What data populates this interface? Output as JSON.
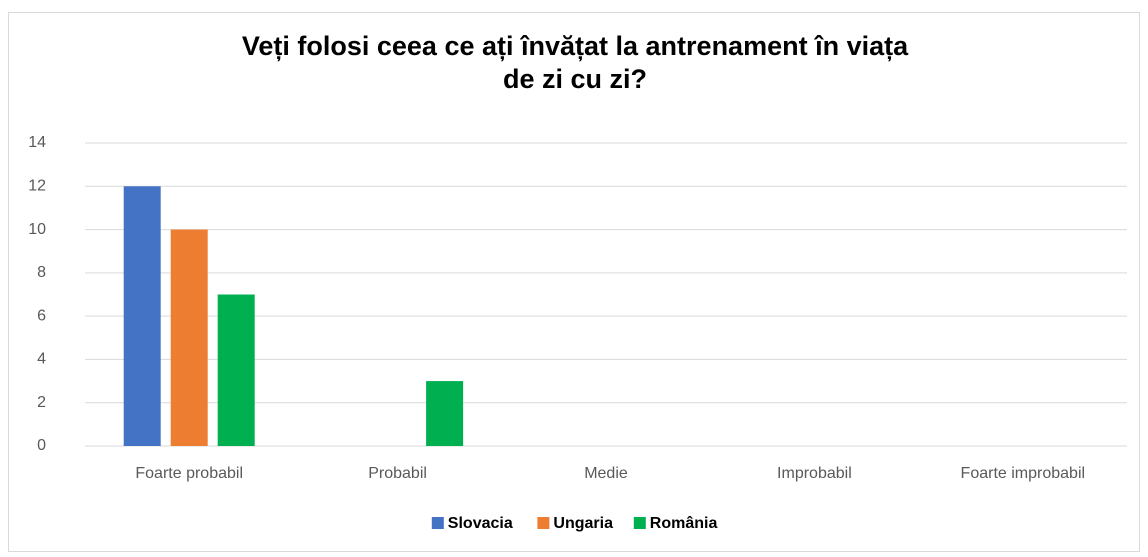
{
  "chart_data": {
    "type": "bar",
    "title": "Veți folosi ceea ce ați învățat la antrenament în viața de zi cu zi?",
    "categories": [
      "Foarte probabil",
      "Probabil",
      "Medie",
      "Improbabil",
      "Foarte improbabil"
    ],
    "series": [
      {
        "name": "Slovacia",
        "color": "#4472c4",
        "values": [
          12,
          0,
          0,
          0,
          0
        ]
      },
      {
        "name": "Ungaria",
        "color": "#ed7d31",
        "values": [
          10,
          0,
          0,
          0,
          0
        ]
      },
      {
        "name": "România",
        "color": "#00b050",
        "values": [
          7,
          3,
          0,
          0,
          0
        ]
      }
    ],
    "ylim": [
      0,
      14
    ],
    "yticks": [
      0,
      2,
      4,
      6,
      8,
      10,
      12,
      14
    ],
    "grid": true,
    "legend": "bottom"
  }
}
